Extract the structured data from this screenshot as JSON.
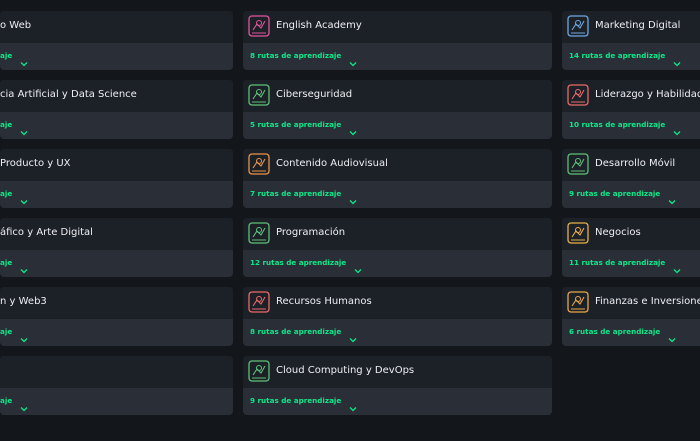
{
  "columns": [
    {
      "cards": [
        {
          "title": "o Web",
          "routes": "aje"
        },
        {
          "title": "cia Artificial y Data Science",
          "routes": "aje"
        },
        {
          "title": "Producto y UX",
          "routes": "aje"
        },
        {
          "title": "áfico y Arte Digital",
          "routes": "aje"
        },
        {
          "title": "n y Web3",
          "routes": "aje"
        },
        {
          "routes": "aje"
        }
      ]
    },
    {
      "cards": [
        {
          "title": "English Academy",
          "routes": "8 rutas de aprendizaje",
          "icon_color": "#e0559b"
        },
        {
          "title": "Ciberseguridad",
          "routes": "5 rutas de aprendizaje",
          "icon_color": "#5fbf7a"
        },
        {
          "title": "Contenido Audiovisual",
          "routes": "7 rutas de aprendizaje",
          "icon_color": "#e8944a"
        },
        {
          "title": "Programación",
          "routes": "12 rutas de aprendizaje",
          "icon_color": "#5fbf7a"
        },
        {
          "title": "Recursos Humanos",
          "routes": "8 rutas de aprendizaje",
          "icon_color": "#e86a6a"
        },
        {
          "title": "Cloud Computing y DevOps",
          "routes": "9 rutas de aprendizaje",
          "icon_color": "#5fbf7a"
        }
      ]
    },
    {
      "cards": [
        {
          "title": "Marketing Digital",
          "routes": "14 rutas de aprendizaje",
          "icon_color": "#6fa8e0"
        },
        {
          "title": "Liderazgo y Habilidades",
          "routes": "10 rutas de aprendizaje",
          "icon_color": "#e86a6a"
        },
        {
          "title": "Desarrollo Móvil",
          "routes": "9 rutas de aprendizaje",
          "icon_color": "#5fbf7a"
        },
        {
          "title": "Negocios",
          "routes": "11 rutas de aprendizaje",
          "icon_color": "#e8b04a"
        },
        {
          "title": "Finanzas e Inversiones",
          "routes": "6 rutas de aprendizaje",
          "icon_color": "#e8a84a"
        }
      ]
    }
  ]
}
